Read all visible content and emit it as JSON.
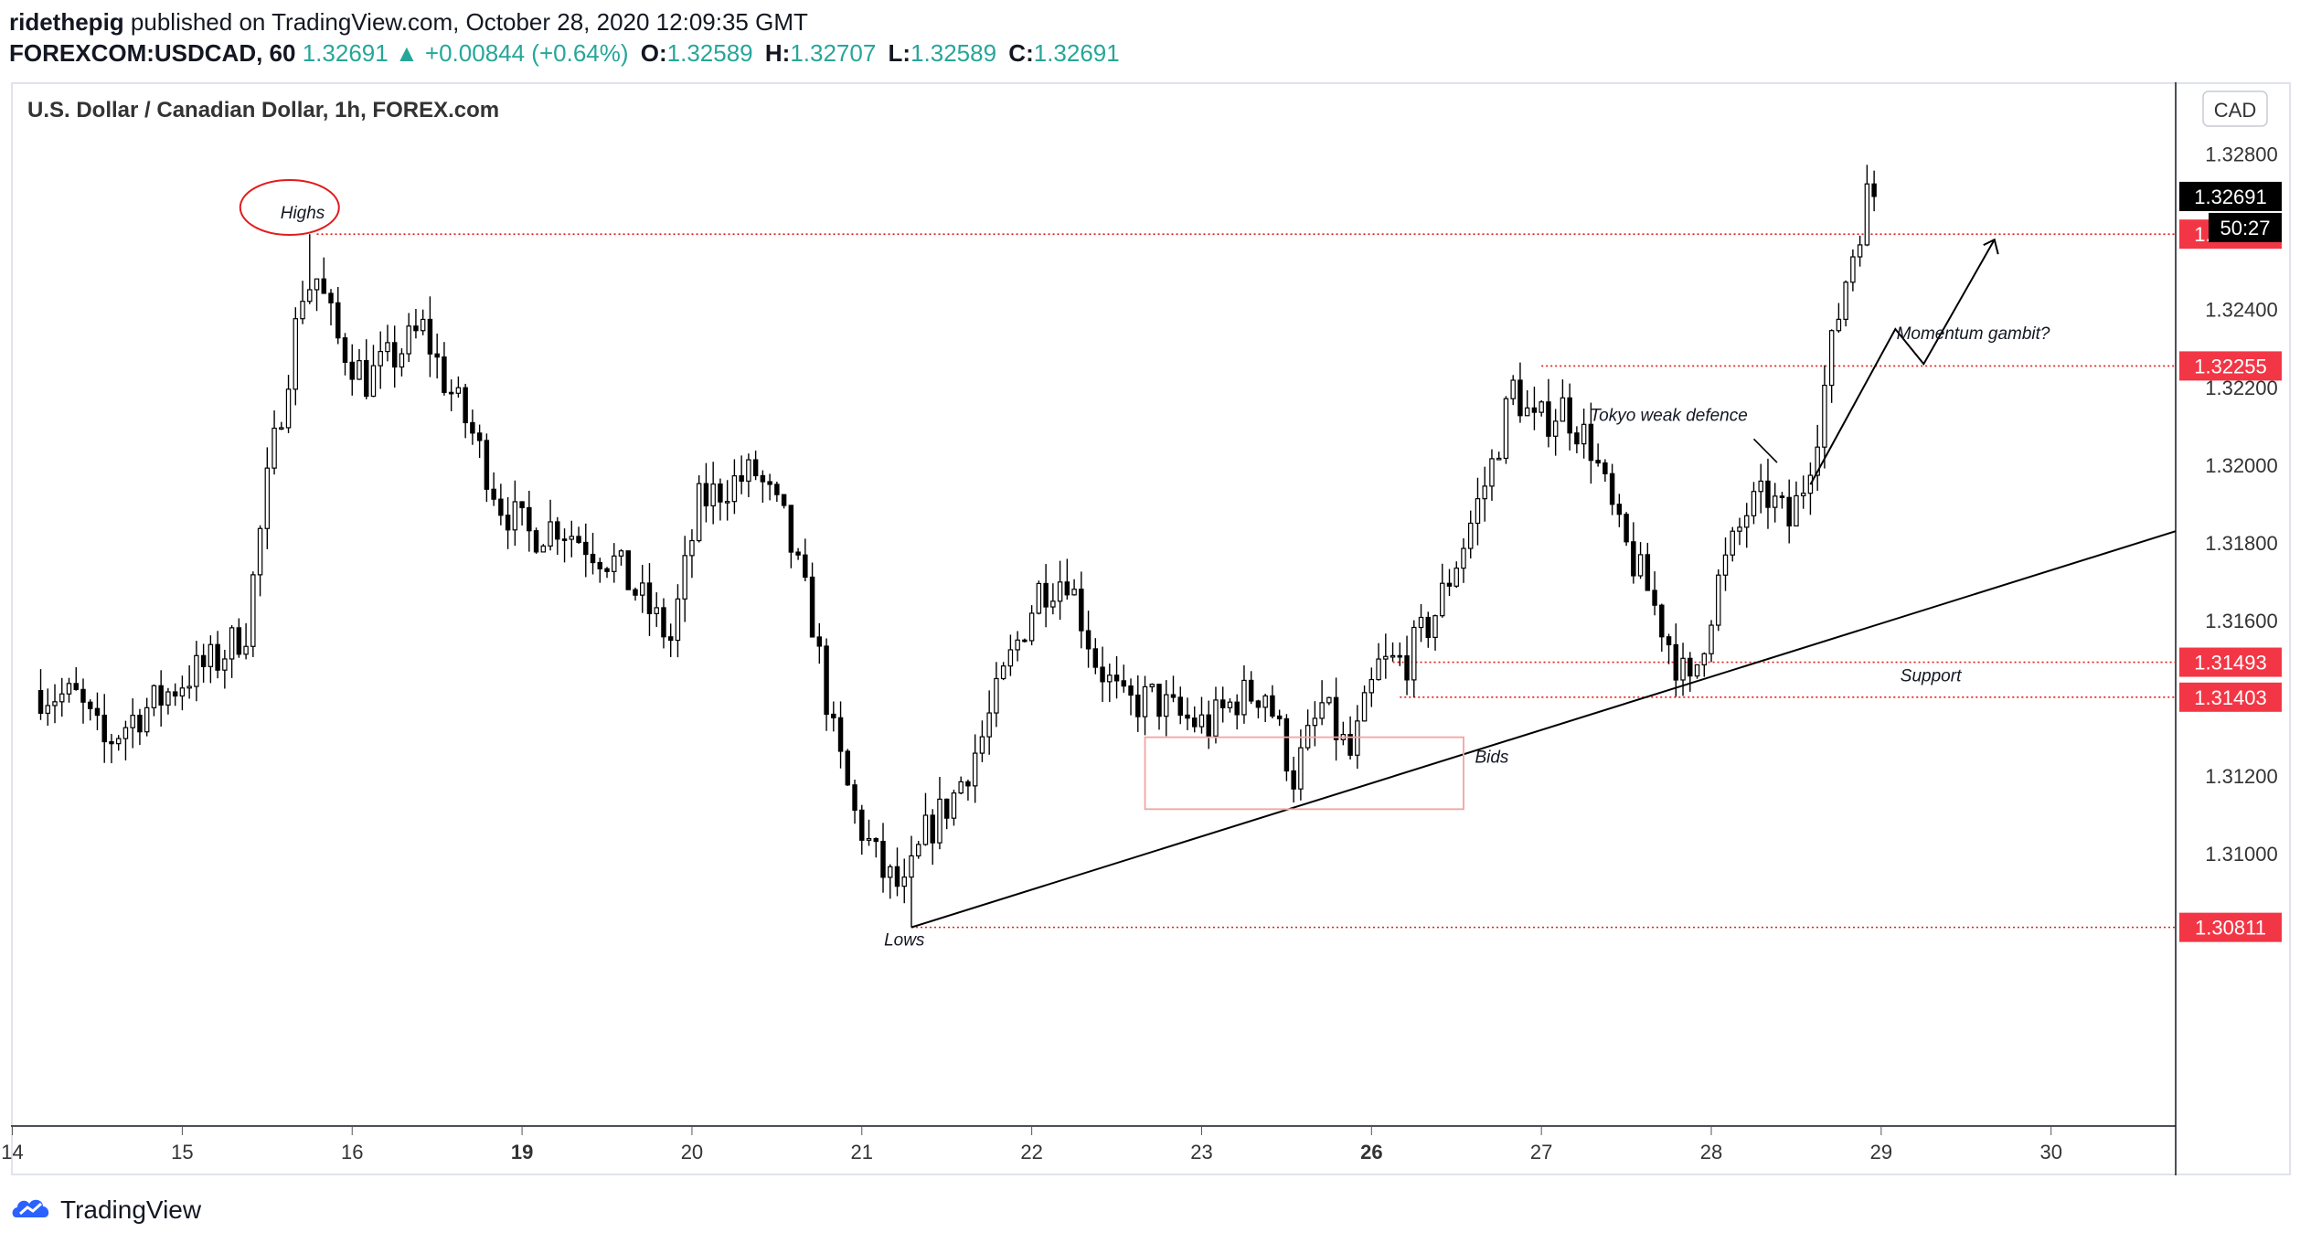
{
  "header": {
    "author": "ridethepig",
    "published_text": "published on TradingView.com, October 28, 2020 12:09:35 GMT",
    "symbol": "FOREXCOM:USDCAD, 60",
    "price": "1.32691",
    "change_arrow": "▲",
    "change": "+0.00844 (+0.64%)",
    "o_label": "O:",
    "o_value": "1.32589",
    "h_label": "H:",
    "h_value": "1.32707",
    "l_label": "L:",
    "l_value": "1.32589",
    "c_label": "C:",
    "c_value": "1.32691"
  },
  "footer": {
    "brand": "TradingView"
  },
  "colors": {
    "up": "#26a69a",
    "candle": "#000000",
    "level_line": "#e31b1b",
    "label_bg": "#f23645",
    "price_tag_bg": "#000000",
    "bids_box": "#f4a3a3"
  },
  "chart_data": {
    "type": "candlestick",
    "title": "U.S. Dollar / Canadian Dollar, 1h, FOREX.com",
    "currency": "CAD",
    "ylim": [
      1.303,
      1.3298
    ],
    "y_ticks": [
      "1.32800",
      "1.32400",
      "1.32200",
      "1.32000",
      "1.31800",
      "1.31600",
      "1.31200",
      "1.31000"
    ],
    "x_ticks": [
      {
        "label": "14",
        "bar": -4,
        "bold": false
      },
      {
        "label": "15",
        "bar": 20,
        "bold": false
      },
      {
        "label": "16",
        "bar": 44,
        "bold": false
      },
      {
        "label": "19",
        "bar": 68,
        "bold": true
      },
      {
        "label": "20",
        "bar": 92,
        "bold": false
      },
      {
        "label": "21",
        "bar": 116,
        "bold": false
      },
      {
        "label": "22",
        "bar": 140,
        "bold": false
      },
      {
        "label": "23",
        "bar": 164,
        "bold": false
      },
      {
        "label": "26",
        "bar": 188,
        "bold": true
      },
      {
        "label": "27",
        "bar": 212,
        "bold": false
      },
      {
        "label": "28",
        "bar": 236,
        "bold": false
      },
      {
        "label": "29",
        "bar": 260,
        "bold": false
      },
      {
        "label": "30",
        "bar": 284,
        "bold": false
      }
    ],
    "bar_range": [
      -4.2,
      301.6
    ],
    "anchors": [
      [
        0,
        1.3142
      ],
      [
        6,
        1.314
      ],
      [
        10,
        1.3128
      ],
      [
        14,
        1.3135
      ],
      [
        18,
        1.314
      ],
      [
        22,
        1.3146
      ],
      [
        26,
        1.315
      ],
      [
        30,
        1.3158
      ],
      [
        33,
        1.3195
      ],
      [
        36,
        1.3225
      ],
      [
        38,
        1.3245
      ],
      [
        40,
        1.3248
      ],
      [
        43,
        1.3232
      ],
      [
        47,
        1.3222
      ],
      [
        51,
        1.3228
      ],
      [
        55,
        1.3235
      ],
      [
        58,
        1.3222
      ],
      [
        62,
        1.3208
      ],
      [
        66,
        1.319
      ],
      [
        70,
        1.3182
      ],
      [
        74,
        1.3185
      ],
      [
        78,
        1.318
      ],
      [
        82,
        1.3175
      ],
      [
        86,
        1.3165
      ],
      [
        90,
        1.3155
      ],
      [
        94,
        1.319
      ],
      [
        98,
        1.3195
      ],
      [
        102,
        1.3198
      ],
      [
        106,
        1.3185
      ],
      [
        110,
        1.316
      ],
      [
        113,
        1.313
      ],
      [
        116,
        1.311
      ],
      [
        120,
        1.3095
      ],
      [
        123,
        1.309
      ],
      [
        126,
        1.3105
      ],
      [
        130,
        1.3115
      ],
      [
        134,
        1.313
      ],
      [
        138,
        1.315
      ],
      [
        142,
        1.3168
      ],
      [
        146,
        1.3172
      ],
      [
        150,
        1.315
      ],
      [
        154,
        1.3138
      ],
      [
        158,
        1.314
      ],
      [
        162,
        1.3135
      ],
      [
        166,
        1.3133
      ],
      [
        170,
        1.314
      ],
      [
        174,
        1.3142
      ],
      [
        178,
        1.312
      ],
      [
        182,
        1.3138
      ],
      [
        186,
        1.3125
      ],
      [
        190,
        1.3148
      ],
      [
        194,
        1.315
      ],
      [
        198,
        1.3162
      ],
      [
        202,
        1.318
      ],
      [
        206,
        1.32
      ],
      [
        209,
        1.322
      ],
      [
        212,
        1.321
      ],
      [
        216,
        1.3215
      ],
      [
        220,
        1.3205
      ],
      [
        224,
        1.3182
      ],
      [
        228,
        1.3168
      ],
      [
        232,
        1.315
      ],
      [
        234,
        1.3142
      ],
      [
        238,
        1.317
      ],
      [
        242,
        1.3188
      ],
      [
        245,
        1.3192
      ],
      [
        248,
        1.3185
      ],
      [
        250,
        1.3195
      ],
      [
        252,
        1.321
      ],
      [
        254,
        1.323
      ],
      [
        256,
        1.3248
      ],
      [
        258,
        1.3262
      ],
      [
        259,
        1.3269
      ]
    ],
    "last_price": "1.32691",
    "countdown": "50:27",
    "levels": [
      {
        "price": 1.32594,
        "label": "1.32594",
        "from_bar": 39
      },
      {
        "price": 1.32255,
        "label": "1.32255",
        "from_bar": 212
      },
      {
        "price": 1.31493,
        "label": "1.31493",
        "from_bar": 191
      },
      {
        "price": 1.31403,
        "label": "1.31403",
        "from_bar": 192
      },
      {
        "price": 1.30811,
        "label": "1.30811",
        "from_bar": 123
      }
    ],
    "trendline": {
      "from": [
        123,
        1.30811
      ],
      "to": [
        301.6,
        1.3183
      ]
    },
    "bids_box": {
      "bar_from": 156,
      "bar_to": 201,
      "price_top": 1.313,
      "price_bottom": 1.31115
    },
    "momentum_path": [
      [
        250,
        1.3195
      ],
      [
        262,
        1.3235
      ],
      [
        266,
        1.3226
      ],
      [
        276,
        1.3258
      ]
    ],
    "tokyo_pointer": [
      [
        242,
        1.321
      ],
      [
        244,
        1.3203
      ]
    ],
    "annotations": [
      {
        "text": "Highs",
        "bar": 37,
        "price": 1.3262
      },
      {
        "text": "Lows",
        "bar": 122,
        "price": 1.3075
      },
      {
        "text": "Bids",
        "bar": 205,
        "price": 1.3122
      },
      {
        "text": "Support",
        "bar": 267,
        "price": 1.3143
      },
      {
        "text": "Tokyo weak defence",
        "bar": 230,
        "price": 1.321
      },
      {
        "text": "Momentum gambit?",
        "bar": 273,
        "price": 1.3231
      }
    ],
    "highs_ellipse": {
      "bar": 38,
      "price": 1.32625
    },
    "grid": false,
    "legend": "none"
  }
}
